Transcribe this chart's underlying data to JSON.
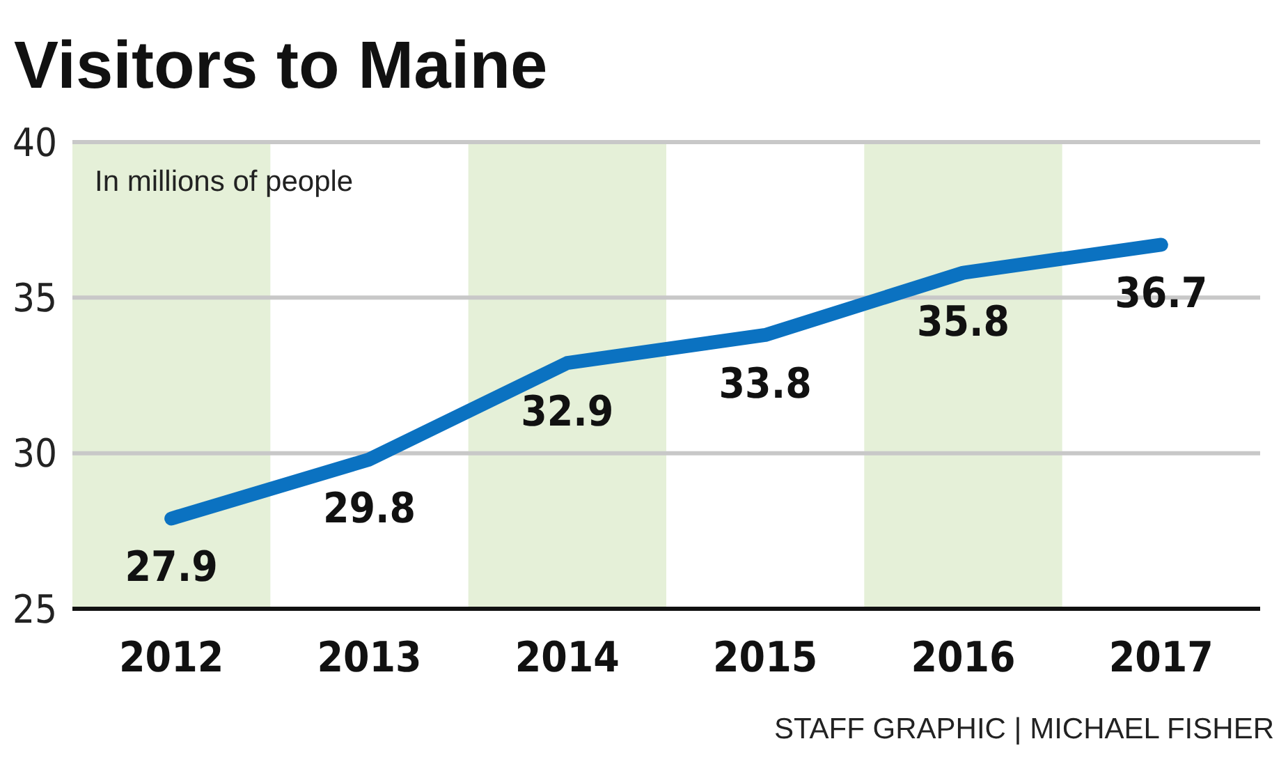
{
  "chart_data": {
    "type": "line",
    "title": "Visitors to Maine",
    "subtitle": "In millions of people",
    "x": [
      2012,
      2013,
      2014,
      2015,
      2016,
      2017
    ],
    "series": [
      {
        "color": "#0b72c1",
        "values": [
          27.9,
          29.8,
          32.9,
          33.8,
          35.8,
          36.7
        ]
      }
    ],
    "xlim": [
      2011.5,
      2017.5
    ],
    "xticks": [
      2012,
      2013,
      2014,
      2015,
      2016,
      2017
    ],
    "ylim": [
      25,
      40
    ],
    "yticks": [
      25,
      30,
      35,
      40
    ],
    "grid": "y",
    "data_labels": true,
    "marker": "none",
    "line_style": "solid",
    "bands": [
      {
        "axis": "x",
        "from": 2011.5,
        "to": 2012.5,
        "color": "#e5f0d8"
      },
      {
        "axis": "x",
        "from": 2013.5,
        "to": 2014.5,
        "color": "#e5f0d8"
      },
      {
        "axis": "x",
        "from": 2015.5,
        "to": 2016.5,
        "color": "#e5f0d8"
      }
    ],
    "annotations": [
      "STAFF GRAPHIC | MICHAEL FISHER"
    ]
  }
}
